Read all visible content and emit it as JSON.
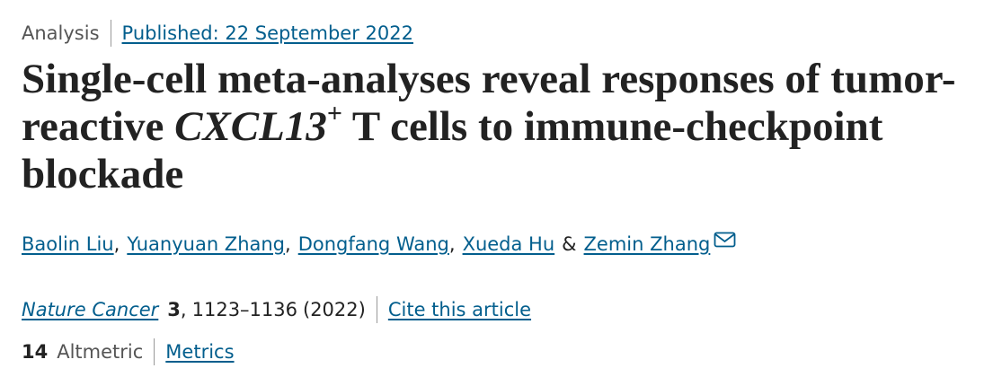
{
  "header": {
    "article_type": "Analysis",
    "published": "Published: 22 September 2022"
  },
  "title": {
    "before": "Single-cell meta-analyses reveal responses of tumor-reactive ",
    "gene": "CXCL13",
    "superscript": "+",
    "after": " T cells to immune-checkpoint blockade"
  },
  "authors": {
    "names": [
      "Baolin Liu",
      "Yuanyuan Zhang",
      "Dongfang Wang",
      "Xueda Hu",
      "Zemin Zhang"
    ],
    "separator": ",",
    "last_separator": "&"
  },
  "citation": {
    "journal": "Nature Cancer",
    "volume": "3",
    "pages": "1123–1136",
    "year": "(2022)",
    "cite_link": "Cite this article"
  },
  "metrics": {
    "altmetric_score": "14",
    "altmetric_label": "Altmetric",
    "metrics_link": "Metrics"
  }
}
